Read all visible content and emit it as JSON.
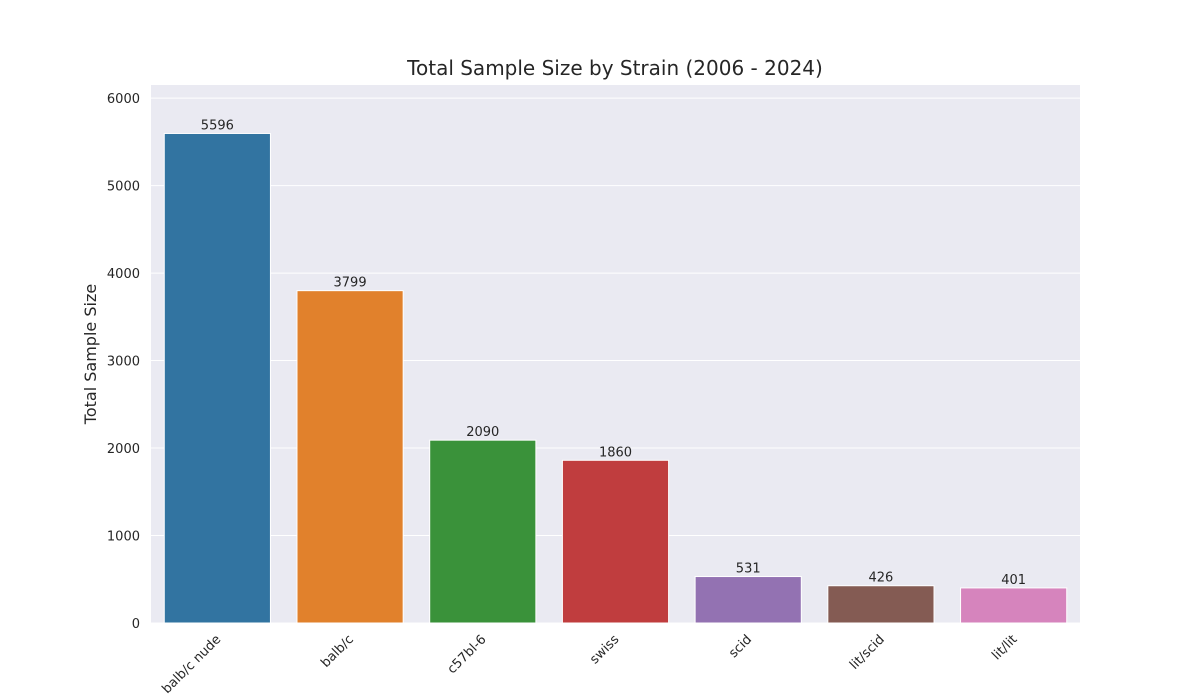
{
  "chart_data": {
    "type": "bar",
    "title": "Total Sample Size by Strain (2006 - 2024)",
    "xlabel": "",
    "ylabel": "Total Sample Size",
    "categories": [
      "balb/c nude",
      "balb/c",
      "c57bl-6",
      "swiss",
      "scid",
      "lit/scid",
      "lit/lit"
    ],
    "values": [
      5596,
      3799,
      2090,
      1860,
      531,
      426,
      401
    ],
    "colors": [
      "#3274a1",
      "#e1812c",
      "#3a923a",
      "#c03d3e",
      "#9372b2",
      "#845b53",
      "#d684bd"
    ],
    "ylim": [
      0,
      6150
    ],
    "yticks": [
      0,
      1000,
      2000,
      3000,
      4000,
      5000,
      6000
    ],
    "grid": true,
    "legend": "none",
    "style": {
      "plot_background": "#eaeaf2",
      "grid_color": "#ffffff"
    }
  }
}
